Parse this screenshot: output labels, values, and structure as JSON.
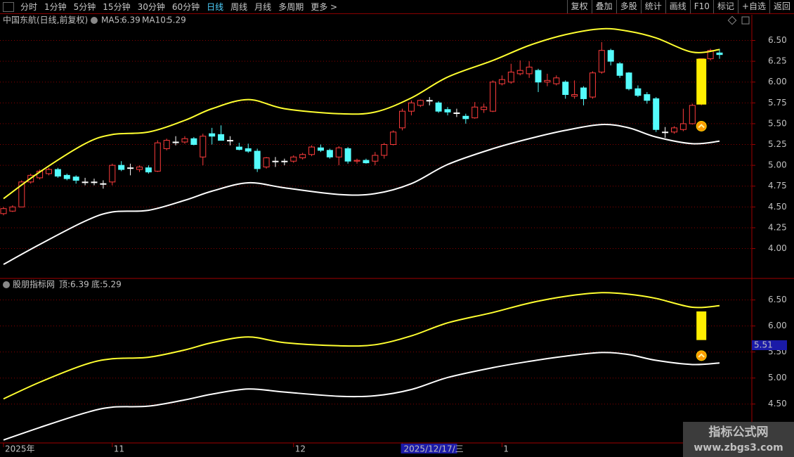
{
  "toolbar": {
    "left": [
      "分时",
      "1分钟",
      "5分钟",
      "15分钟",
      "30分钟",
      "60分钟",
      "日线",
      "周线",
      "月线",
      "多周期",
      "更多 >"
    ],
    "active": 6,
    "right": [
      "复权",
      "叠加",
      "多股",
      "统计",
      "画线",
      "F10",
      "标记",
      "+自选",
      "返回"
    ]
  },
  "chart_data": [
    {
      "type": "candlestick",
      "title": "中国东航(日线,前复权)",
      "up_color": "#ff3c3c",
      "down_color": "#54fcfc",
      "flat_color": "#ffffff",
      "ylim": [
        3.65,
        6.8
      ],
      "yticks": [
        {
          "value": 6.5,
          "label": "6.50"
        },
        6.25,
        {
          "value": 6.0,
          "label": "6.00"
        },
        5.75,
        {
          "value": 5.5,
          "label": "5.50"
        },
        5.25,
        {
          "value": 5.0,
          "label": "5.00"
        },
        4.75,
        {
          "value": 4.5,
          "label": "4.50"
        },
        4.25,
        {
          "value": 4.0,
          "label": "4.00"
        }
      ],
      "grid": true,
      "categories": [
        "2025年",
        null,
        null,
        null,
        null,
        null,
        null,
        null,
        null,
        null,
        null,
        null,
        "11",
        null,
        null,
        null,
        null,
        null,
        null,
        null,
        null,
        null,
        null,
        null,
        null,
        null,
        null,
        null,
        null,
        null,
        null,
        null,
        "12",
        null,
        null,
        null,
        null,
        null,
        null,
        null,
        null,
        null,
        null,
        null,
        "2025/12/17/三",
        null,
        null,
        null,
        null,
        null,
        null,
        null,
        null,
        null,
        null,
        "1",
        null,
        null,
        null,
        null,
        null,
        null,
        null,
        null,
        null,
        null,
        null,
        null,
        null,
        null,
        null,
        null,
        null,
        null,
        null,
        null,
        null,
        null,
        null,
        null
      ],
      "candles": [
        [
          4.42,
          4.5,
          4.4,
          4.48
        ],
        [
          4.45,
          4.52,
          4.44,
          4.5
        ],
        [
          4.5,
          4.82,
          4.5,
          4.8
        ],
        [
          4.8,
          4.9,
          4.78,
          4.88
        ],
        [
          4.85,
          4.95,
          4.83,
          4.93
        ],
        [
          4.9,
          4.97,
          4.88,
          4.95
        ],
        [
          4.95,
          4.97,
          4.85,
          4.87
        ],
        [
          4.88,
          4.9,
          4.82,
          4.84
        ],
        [
          4.86,
          4.88,
          4.78,
          4.82
        ],
        [
          4.8,
          4.85,
          4.76,
          4.8
        ],
        [
          4.8,
          4.84,
          4.76,
          4.8
        ],
        [
          4.78,
          4.82,
          4.72,
          4.78
        ],
        [
          4.8,
          5.02,
          4.76,
          5.0
        ],
        [
          5.0,
          5.05,
          4.93,
          4.95
        ],
        [
          4.97,
          5.02,
          4.88,
          4.97
        ],
        [
          4.95,
          5.0,
          4.92,
          4.98
        ],
        [
          4.97,
          5.0,
          4.9,
          4.92
        ],
        [
          4.93,
          5.3,
          4.92,
          5.27
        ],
        [
          5.2,
          5.32,
          5.18,
          5.3
        ],
        [
          5.28,
          5.35,
          5.24,
          5.28
        ],
        [
          5.28,
          5.35,
          5.26,
          5.32
        ],
        [
          5.32,
          5.34,
          5.24,
          5.25
        ],
        [
          5.1,
          5.38,
          5.0,
          5.35
        ],
        [
          5.38,
          5.45,
          5.25,
          5.35
        ],
        [
          5.37,
          5.48,
          5.3,
          5.3
        ],
        [
          5.3,
          5.35,
          5.24,
          5.3
        ],
        [
          5.22,
          5.27,
          5.18,
          5.19
        ],
        [
          5.2,
          5.26,
          5.15,
          5.17
        ],
        [
          5.17,
          5.2,
          4.92,
          4.96
        ],
        [
          4.98,
          5.1,
          4.96,
          5.09
        ],
        [
          5.05,
          5.1,
          4.98,
          5.05
        ],
        [
          5.05,
          5.08,
          5.0,
          5.05
        ],
        [
          5.05,
          5.12,
          5.03,
          5.1
        ],
        [
          5.09,
          5.15,
          5.07,
          5.13
        ],
        [
          5.13,
          5.24,
          5.11,
          5.22
        ],
        [
          5.21,
          5.25,
          5.16,
          5.18
        ],
        [
          5.18,
          5.2,
          5.08,
          5.1
        ],
        [
          5.1,
          5.23,
          5.0,
          5.21
        ],
        [
          5.2,
          5.22,
          5.02,
          5.05
        ],
        [
          5.05,
          5.08,
          5.02,
          5.06
        ],
        [
          5.06,
          5.08,
          5.02,
          5.03
        ],
        [
          5.05,
          5.16,
          5.0,
          5.12
        ],
        [
          5.12,
          5.27,
          5.08,
          5.25
        ],
        [
          5.25,
          5.42,
          5.24,
          5.4
        ],
        [
          5.45,
          5.68,
          5.42,
          5.65
        ],
        [
          5.65,
          5.78,
          5.6,
          5.75
        ],
        [
          5.72,
          5.79,
          5.7,
          5.78
        ],
        [
          5.78,
          5.82,
          5.72,
          5.78
        ],
        [
          5.75,
          5.77,
          5.63,
          5.65
        ],
        [
          5.67,
          5.7,
          5.6,
          5.64
        ],
        [
          5.63,
          5.68,
          5.58,
          5.63
        ],
        [
          5.59,
          5.62,
          5.5,
          5.56
        ],
        [
          5.57,
          5.76,
          5.56,
          5.7
        ],
        [
          5.67,
          5.74,
          5.63,
          5.7
        ],
        [
          5.65,
          6.02,
          5.64,
          6.0
        ],
        [
          5.98,
          6.08,
          5.96,
          6.03
        ],
        [
          6.0,
          6.22,
          5.98,
          6.12
        ],
        [
          6.1,
          6.26,
          6.08,
          6.14
        ],
        [
          6.1,
          6.25,
          6.05,
          6.18
        ],
        [
          6.14,
          6.16,
          5.88,
          6.0
        ],
        [
          6.0,
          6.1,
          5.95,
          6.02
        ],
        [
          5.98,
          6.08,
          5.96,
          6.05
        ],
        [
          6.0,
          6.02,
          5.8,
          5.85
        ],
        [
          5.83,
          6.02,
          5.8,
          5.85
        ],
        [
          5.93,
          5.95,
          5.72,
          5.8
        ],
        [
          5.82,
          6.13,
          5.8,
          6.11
        ],
        [
          6.12,
          6.48,
          6.1,
          6.38
        ],
        [
          6.38,
          6.4,
          6.2,
          6.25
        ],
        [
          6.22,
          6.24,
          6.05,
          6.08
        ],
        [
          6.11,
          6.12,
          5.9,
          5.92
        ],
        [
          5.92,
          5.96,
          5.82,
          5.84
        ],
        [
          5.85,
          5.88,
          5.74,
          5.78
        ],
        [
          5.8,
          5.82,
          5.4,
          5.43
        ],
        [
          5.4,
          5.46,
          5.33,
          5.4
        ],
        [
          5.4,
          5.47,
          5.38,
          5.45
        ],
        [
          5.43,
          5.68,
          5.41,
          5.5
        ],
        [
          5.5,
          5.74,
          5.49,
          5.72
        ],
        [
          5.74,
          6.28,
          5.72,
          6.28
        ],
        [
          6.28,
          6.4,
          6.26,
          6.38
        ],
        [
          6.35,
          6.4,
          6.28,
          6.33
        ]
      ],
      "series": [
        {
          "name": "MA5:",
          "color": "#ffff30",
          "x": [
            0,
            4,
            9,
            12,
            16,
            20,
            23,
            27,
            31,
            37,
            41,
            45,
            49,
            54,
            58,
            62,
            66,
            69,
            72,
            76,
            79
          ],
          "values": [
            4.6,
            4.92,
            5.26,
            5.37,
            5.4,
            5.54,
            5.68,
            5.79,
            5.68,
            5.62,
            5.64,
            5.81,
            6.06,
            6.26,
            6.44,
            6.57,
            6.64,
            6.61,
            6.53,
            6.36,
            6.39
          ]
        },
        {
          "name": "MA10:",
          "color": "#ffffff",
          "x": [
            0,
            4,
            9,
            12,
            16,
            20,
            23,
            27,
            31,
            37,
            41,
            45,
            49,
            54,
            58,
            62,
            66,
            69,
            72,
            76,
            79
          ],
          "values": [
            3.81,
            4.05,
            4.33,
            4.44,
            4.46,
            4.58,
            4.69,
            4.79,
            4.73,
            4.65,
            4.66,
            4.78,
            5.01,
            5.2,
            5.32,
            5.42,
            5.49,
            5.45,
            5.34,
            5.26,
            5.29
          ]
        }
      ],
      "signals": [
        {
          "index": 77,
          "bar": [
            5.73,
            6.28
          ],
          "marker": 5.47
        }
      ]
    },
    {
      "type": "line",
      "title": "股朋指标网",
      "ylim": [
        3.78,
        6.86
      ],
      "yticks": [
        {
          "value": 6.5,
          "label": "6.50"
        },
        {
          "value": 6.0,
          "label": "6.00"
        },
        {
          "value": 5.5,
          "label": "5.50"
        },
        {
          "value": 5.0,
          "label": "5.00"
        },
        {
          "value": 4.5,
          "label": "4.50"
        }
      ],
      "grid": true,
      "cursor_label": 5.51,
      "series": [
        {
          "name": "顶:",
          "color": "#ffff30",
          "x": [
            0,
            4,
            9,
            12,
            16,
            20,
            23,
            27,
            31,
            37,
            41,
            45,
            49,
            54,
            58,
            62,
            66,
            69,
            72,
            76,
            79
          ],
          "values": [
            4.6,
            4.92,
            5.26,
            5.37,
            5.4,
            5.54,
            5.68,
            5.79,
            5.68,
            5.62,
            5.64,
            5.81,
            6.06,
            6.26,
            6.44,
            6.57,
            6.64,
            6.61,
            6.53,
            6.36,
            6.39
          ]
        },
        {
          "name": "底:",
          "color": "#ffffff",
          "x": [
            0,
            4,
            9,
            12,
            16,
            20,
            23,
            27,
            31,
            37,
            41,
            45,
            49,
            54,
            58,
            62,
            66,
            69,
            72,
            76,
            79
          ],
          "values": [
            3.81,
            4.05,
            4.33,
            4.44,
            4.46,
            4.58,
            4.69,
            4.79,
            4.73,
            4.65,
            4.66,
            4.78,
            5.01,
            5.2,
            5.32,
            5.42,
            5.49,
            5.45,
            5.34,
            5.26,
            5.29
          ]
        }
      ],
      "signals": [
        {
          "index": 77,
          "bar": [
            5.73,
            6.28
          ],
          "marker": 5.43
        }
      ]
    }
  ],
  "watermark": {
    "title": "指标公式网",
    "url": "www.zbgs3.com"
  }
}
